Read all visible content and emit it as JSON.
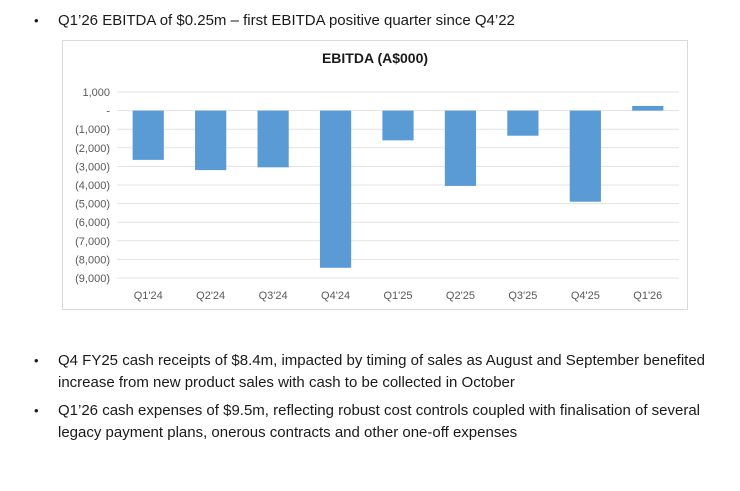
{
  "bullets": {
    "first": "Q1’26 EBITDA of $0.25m – first EBITDA positive quarter since Q4’22",
    "second": "Q4 FY25 cash receipts of $8.4m, impacted by timing of sales as August and September benefited increase from new product sales with cash to be collected in October",
    "third": "Q1’26 cash expenses of $9.5m, reflecting robust cost controls coupled with finalisation of several legacy payment plans, onerous contracts and other one-off expenses",
    "marker": "•"
  },
  "colors": {
    "bar": "#5b9bd5",
    "grid": "#e3e3e3",
    "axis_text": "#595959"
  },
  "chart_data": {
    "type": "bar",
    "title": "EBITDA (A$000)",
    "categories": [
      "Q1'24",
      "Q2'24",
      "Q3'24",
      "Q4'24",
      "Q1'25",
      "Q2'25",
      "Q3'25",
      "Q4'25",
      "Q1'26"
    ],
    "values": [
      -2650,
      -3200,
      -3050,
      -8450,
      -1600,
      -4050,
      -1350,
      -4900,
      250
    ],
    "ylim": [
      -9000,
      1000
    ],
    "yticks": [
      1000,
      0,
      -1000,
      -2000,
      -3000,
      -4000,
      -5000,
      -6000,
      -7000,
      -8000,
      -9000
    ],
    "ytick_labels": [
      "1,000",
      "-",
      "(1,000)",
      "(2,000)",
      "(3,000)",
      "(4,000)",
      "(5,000)",
      "(6,000)",
      "(7,000)",
      "(8,000)",
      "(9,000)"
    ],
    "xlabel": "",
    "ylabel": "",
    "grid": true,
    "legend": false
  }
}
